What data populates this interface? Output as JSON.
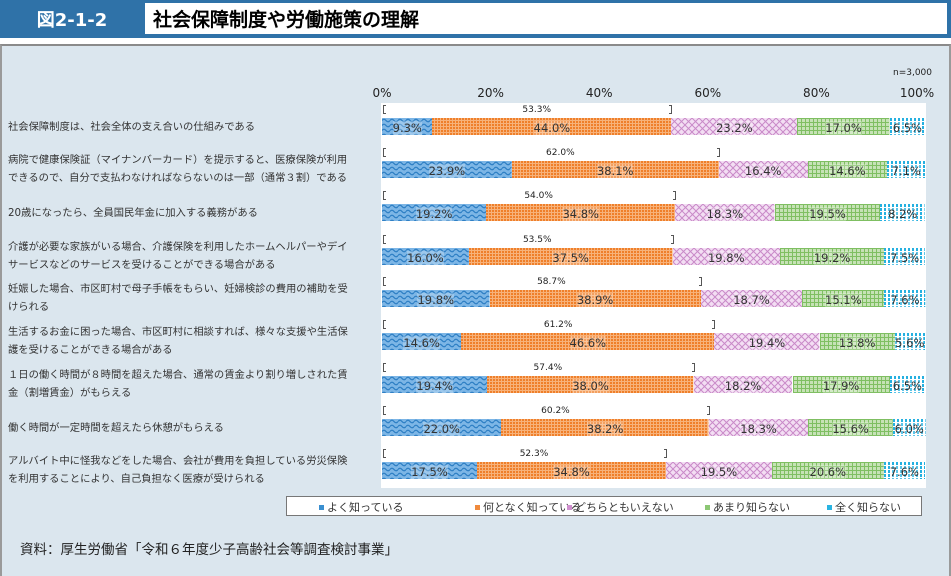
{
  "header": {
    "figure_number": "図2-1-2",
    "title": "社会保障制度や労働施策の理解"
  },
  "source": "資料：厚生労働省「令和６年度少子高齢社会等調査検討事業」",
  "chart_data": {
    "type": "bar",
    "orientation": "horizontal-stacked-100",
    "title": "社会保障制度や労働施策の理解",
    "sample_size": "n=3,000",
    "xlim": [
      0,
      100
    ],
    "x_ticks": [
      "0%",
      "20%",
      "40%",
      "60%",
      "80%",
      "100%"
    ],
    "legend_position": "bottom",
    "series": [
      {
        "name": "よく知っている",
        "color": "#3a8fd0",
        "pattern": "wave"
      },
      {
        "name": "何となく知っている",
        "color": "#f08a3c",
        "pattern": "dots"
      },
      {
        "name": "どちらともいえない",
        "color": "#cf8fce",
        "pattern": "cross"
      },
      {
        "name": "あまり知らない",
        "color": "#8cc774",
        "pattern": "grid"
      },
      {
        "name": "全く知らない",
        "color": "#29b4e2",
        "pattern": "stripe"
      }
    ],
    "categories": [
      {
        "label": [
          "社会保障制度は、社会全体の支え合いの仕組みである"
        ],
        "values": [
          9.3,
          44.0,
          23.2,
          17.0,
          6.5
        ],
        "labels": [
          "9.3%",
          "44.0%",
          "23.2%",
          "17.0%",
          "6.5%"
        ],
        "known_total": "53.3%"
      },
      {
        "label": [
          "病院で健康保険証（マイナンバーカード）を提示すると、医療保険が利用",
          "できるので、自分で支払わなければならないのは一部（通常３割）である"
        ],
        "values": [
          23.9,
          38.1,
          16.4,
          14.6,
          7.1
        ],
        "labels": [
          "23.9%",
          "38.1%",
          "16.4%",
          "14.6%",
          "7.1%"
        ],
        "known_total": "62.0%"
      },
      {
        "label": [
          "20歳になったら、全員国民年金に加入する義務がある"
        ],
        "values": [
          19.2,
          34.8,
          18.3,
          19.5,
          8.2
        ],
        "labels": [
          "19.2%",
          "34.8%",
          "18.3%",
          "19.5%",
          "8.2%"
        ],
        "known_total": "54.0%"
      },
      {
        "label": [
          "介護が必要な家族がいる場合、介護保険を利用したホームヘルパーやデイ",
          "サービスなどのサービスを受けることができる場合がある"
        ],
        "values": [
          16.0,
          37.5,
          19.8,
          19.2,
          7.5
        ],
        "labels": [
          "16.0%",
          "37.5%",
          "19.8%",
          "19.2%",
          "7.5%"
        ],
        "known_total": "53.5%"
      },
      {
        "label": [
          "妊娠した場合、市区町村で母子手帳をもらい、妊婦検診の費用の補助を受",
          "けられる"
        ],
        "values": [
          19.8,
          38.9,
          18.7,
          15.1,
          7.6
        ],
        "labels": [
          "19.8%",
          "38.9%",
          "18.7%",
          "15.1%",
          "7.6%"
        ],
        "known_total": "58.7%"
      },
      {
        "label": [
          "生活するお金に困った場合、市区町村に相談すれば、様々な支援や生活保",
          "護を受けることができる場合がある"
        ],
        "values": [
          14.6,
          46.6,
          19.4,
          13.8,
          5.6
        ],
        "labels": [
          "14.6%",
          "46.6%",
          "19.4%",
          "13.8%",
          "5.6%"
        ],
        "known_total": "61.2%"
      },
      {
        "label": [
          "１日の働く時間が８時間を超えた場合、通常の賃金より割り増しされた賃",
          "金（割増賃金）がもらえる"
        ],
        "values": [
          19.4,
          38.0,
          18.2,
          17.9,
          6.5
        ],
        "labels": [
          "19.4%",
          "38.0%",
          "18.2%",
          "17.9%",
          "6.5%"
        ],
        "known_total": "57.4%"
      },
      {
        "label": [
          "働く時間が一定時間を超えたら休憩がもらえる"
        ],
        "values": [
          22.0,
          38.2,
          18.3,
          15.6,
          6.0
        ],
        "labels": [
          "22.0%",
          "38.2%",
          "18.3%",
          "15.6%",
          "6.0%"
        ],
        "known_total": "60.2%"
      },
      {
        "label": [
          "アルバイト中に怪我などをした場合、会社が費用を負担している労災保険",
          "を利用することにより、自己負担なく医療が受けられる"
        ],
        "values": [
          17.5,
          34.8,
          19.5,
          20.6,
          7.6
        ],
        "labels": [
          "17.5%",
          "34.8%",
          "19.5%",
          "20.6%",
          "7.6%"
        ],
        "known_total": "52.3%"
      }
    ]
  }
}
